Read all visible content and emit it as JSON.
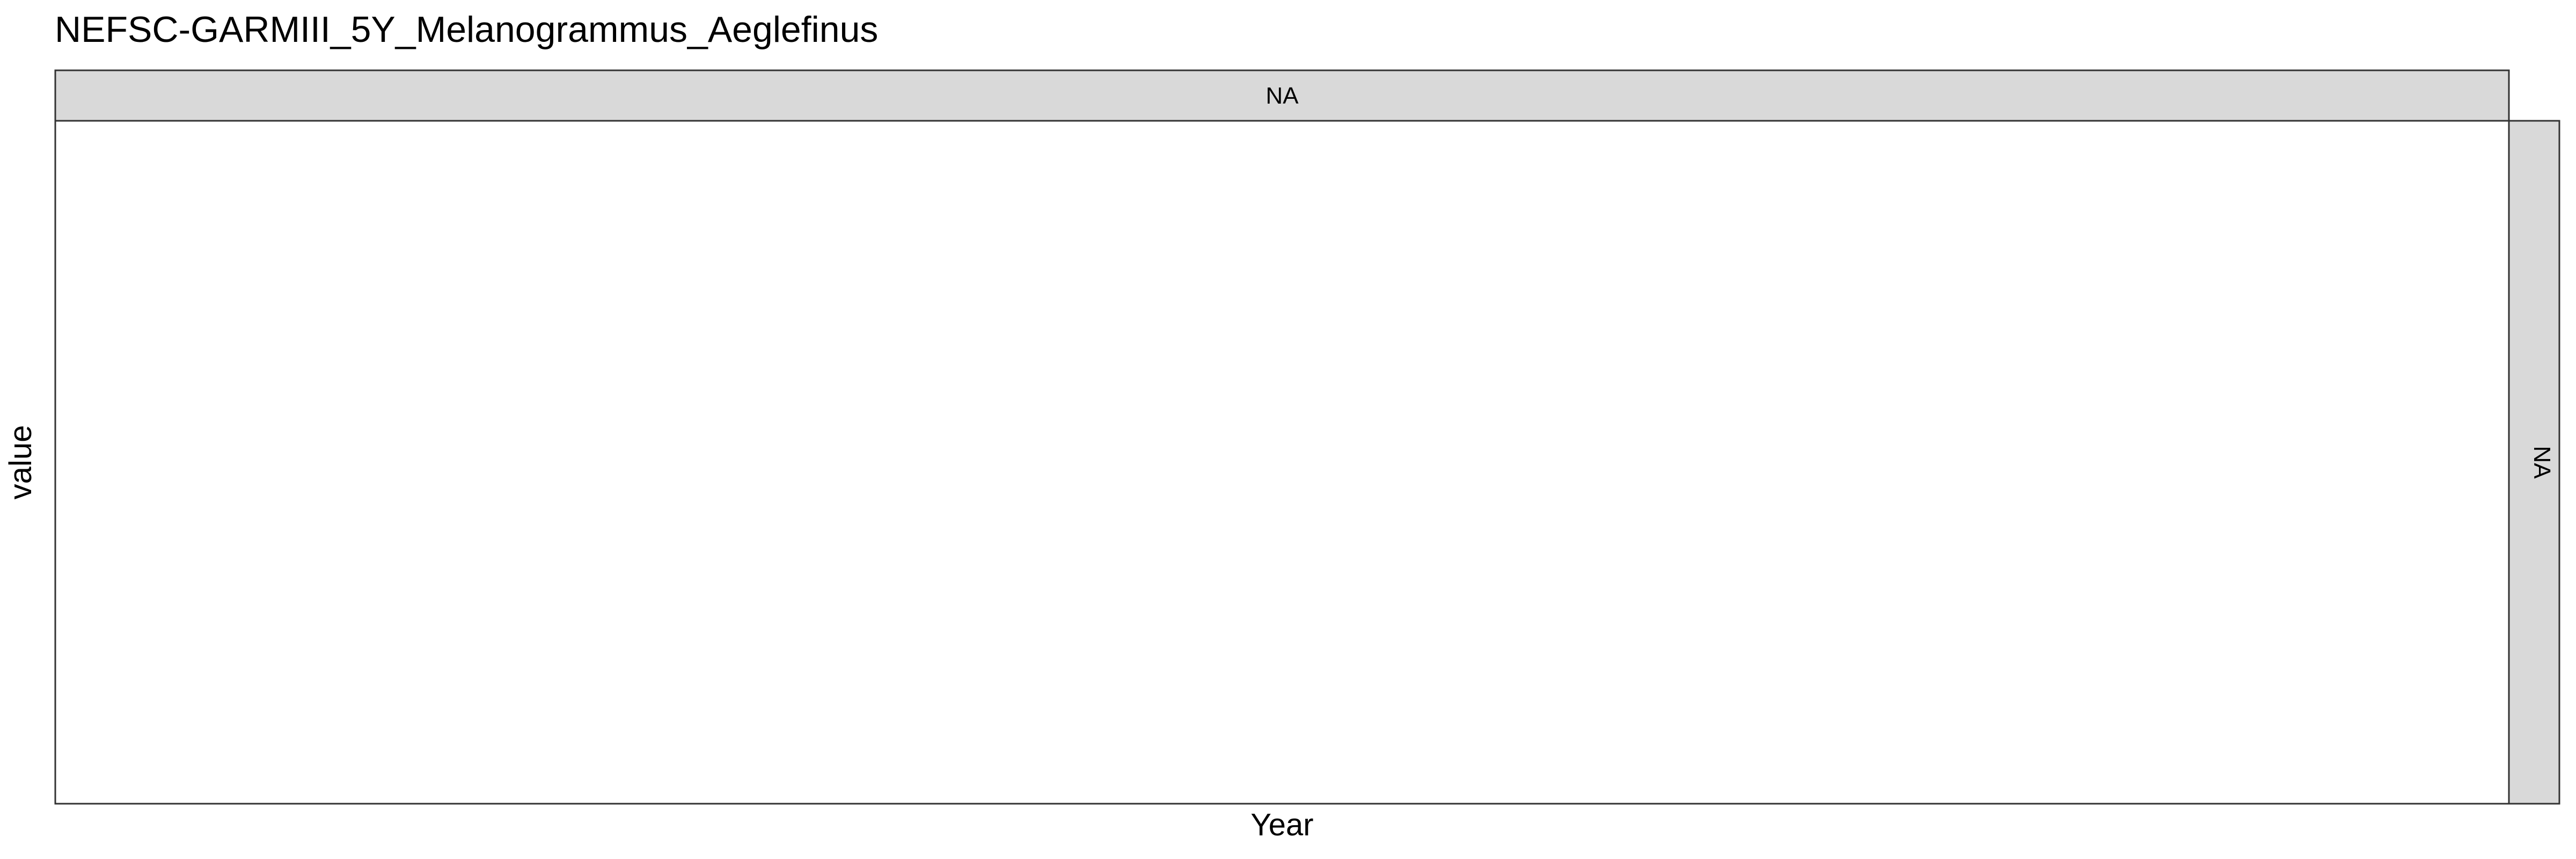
{
  "chart_data": {
    "type": "line",
    "title": "NEFSC-GARMIII_5Y_Melanogrammus_Aeglefinus",
    "xlabel": "Year",
    "ylabel": "value",
    "facet_top_label": "NA",
    "facet_right_label": "NA",
    "series": [],
    "grid": false,
    "legend": "none"
  },
  "colors": {
    "background": "#ffffff",
    "panel_background": "#ffffff",
    "panel_border": "#333333",
    "strip_fill": "#d9d9d9",
    "strip_border": "#333333",
    "text": "#000000",
    "strip_text": "#1a1a1a"
  }
}
